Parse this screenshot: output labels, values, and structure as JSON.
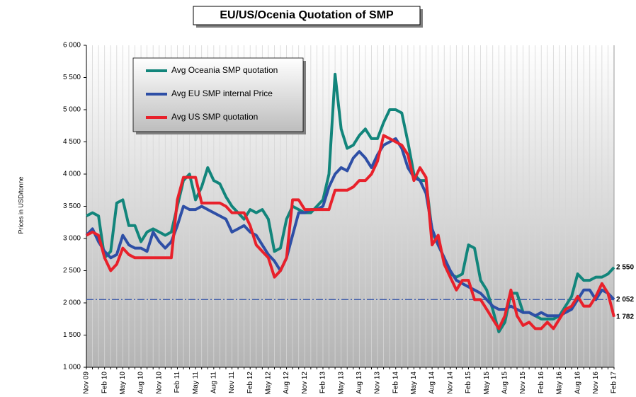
{
  "chart_data": {
    "type": "line",
    "title": "EU/US/Ocenia Quotation of SMP",
    "y_label": "Prices in USD/tonne",
    "categories": [
      "Nov 09",
      null,
      null,
      "Feb 10",
      null,
      null,
      "May 10",
      null,
      null,
      "Aug 10",
      null,
      null,
      "Nov 10",
      null,
      null,
      "Feb 11",
      null,
      null,
      "May 11",
      null,
      null,
      "Aug 11",
      null,
      null,
      "Nov 11",
      null,
      null,
      "Feb 12",
      null,
      null,
      "May 12",
      null,
      null,
      "Aug 12",
      null,
      null,
      "Nov 12",
      null,
      null,
      "Feb 13",
      null,
      null,
      "May 13",
      null,
      null,
      "Aug 13",
      null,
      null,
      "Nov 13",
      null,
      null,
      "Feb 14",
      null,
      null,
      "May 14",
      null,
      null,
      "Aug 14",
      null,
      null,
      "Nov 14",
      null,
      null,
      "Feb 15",
      null,
      null,
      "May 15",
      null,
      null,
      "Aug 15",
      null,
      null,
      "Nov 15",
      null,
      null,
      "Feb 16",
      null,
      null,
      "May 16",
      null,
      null,
      "Aug 16",
      null,
      null,
      "Nov 16",
      null,
      null,
      "Feb 17"
    ],
    "series": [
      {
        "name": "Avg Oceania SMP quotation",
        "color": "#12857b",
        "values": [
          3350,
          3400,
          3350,
          2700,
          2800,
          3550,
          3600,
          3200,
          3200,
          2950,
          3100,
          3150,
          3100,
          3050,
          3100,
          3500,
          3900,
          4000,
          3600,
          3800,
          4100,
          3900,
          3850,
          3650,
          3500,
          3400,
          3300,
          3450,
          3400,
          3450,
          3300,
          2800,
          2850,
          3300,
          3500,
          3450,
          3400,
          3400,
          3500,
          3600,
          4000,
          5550,
          4700,
          4400,
          4450,
          4600,
          4700,
          4550,
          4550,
          4800,
          5000,
          5000,
          4950,
          4500,
          4000,
          3900,
          3900,
          3100,
          2900,
          2700,
          2450,
          2400,
          2450,
          2900,
          2850,
          2350,
          2200,
          1900,
          1550,
          1700,
          2150,
          2150,
          1850,
          1850,
          1800,
          1750,
          1750,
          1750,
          1800,
          1950,
          2100,
          2450,
          2350,
          2350,
          2400,
          2400,
          2450,
          2550
        ]
      },
      {
        "name": "Avg EU SMP internal Price",
        "color": "#2e4fa6",
        "values": [
          3050,
          3150,
          2950,
          2800,
          2700,
          2750,
          3050,
          2900,
          2850,
          2850,
          2800,
          3100,
          2950,
          2850,
          2950,
          3200,
          3500,
          3450,
          3450,
          3500,
          3450,
          3400,
          3350,
          3300,
          3100,
          3150,
          3200,
          3100,
          3050,
          2900,
          2750,
          2650,
          2500,
          2700,
          3050,
          3400,
          3400,
          3450,
          3450,
          3500,
          3800,
          4000,
          4100,
          4050,
          4250,
          4350,
          4250,
          4100,
          4300,
          4450,
          4500,
          4550,
          4400,
          4100,
          3950,
          3900,
          3700,
          3150,
          2900,
          2700,
          2500,
          2350,
          2300,
          2250,
          2200,
          2150,
          2050,
          1950,
          1900,
          1900,
          1950,
          1900,
          1850,
          1850,
          1800,
          1850,
          1800,
          1800,
          1800,
          1850,
          1900,
          2050,
          2200,
          2200,
          2050,
          2200,
          2150,
          2052
        ]
      },
      {
        "name": "Avg US SMP quotation",
        "color": "#e8212b",
        "values": [
          3050,
          3100,
          3050,
          2700,
          2500,
          2600,
          2850,
          2750,
          2700,
          2700,
          2700,
          2700,
          2700,
          2700,
          2700,
          3600,
          3950,
          3950,
          3950,
          3550,
          3550,
          3550,
          3550,
          3500,
          3400,
          3400,
          3400,
          3200,
          2900,
          2800,
          2700,
          2400,
          2500,
          2700,
          3600,
          3600,
          3450,
          3450,
          3450,
          3450,
          3450,
          3750,
          3750,
          3750,
          3800,
          3900,
          3900,
          4000,
          4200,
          4600,
          4550,
          4500,
          4450,
          4300,
          3900,
          4100,
          3950,
          2900,
          3050,
          2600,
          2400,
          2200,
          2350,
          2350,
          2050,
          2050,
          1900,
          1750,
          1600,
          1800,
          2200,
          1800,
          1650,
          1700,
          1600,
          1600,
          1700,
          1600,
          1750,
          1900,
          1950,
          2100,
          1950,
          1950,
          2100,
          2300,
          2150,
          1782
        ]
      }
    ],
    "ylim": [
      1000,
      6000
    ],
    "yticks": [
      {
        "value": 1000,
        "label": "1 000"
      },
      {
        "value": 1500,
        "label": "1 500"
      },
      {
        "value": 2000,
        "label": "2 000"
      },
      {
        "value": 2500,
        "label": "2 500"
      },
      {
        "value": 3000,
        "label": "3 000"
      },
      {
        "value": 3500,
        "label": "3 500"
      },
      {
        "value": 4000,
        "label": "4 000"
      },
      {
        "value": 4500,
        "label": "4 500"
      },
      {
        "value": 5000,
        "label": "5 000"
      },
      {
        "value": 5500,
        "label": "5 500"
      },
      {
        "value": 6000,
        "label": "6 000"
      }
    ],
    "reference_line": {
      "value": 2052,
      "color": "#2e4fa6"
    },
    "annotations": [
      {
        "value": 2550,
        "label": "2 550"
      },
      {
        "value": 2052,
        "label": "2 052"
      },
      {
        "value": 1782,
        "label": "1 782"
      }
    ],
    "grid": true,
    "legend": "upper left"
  }
}
